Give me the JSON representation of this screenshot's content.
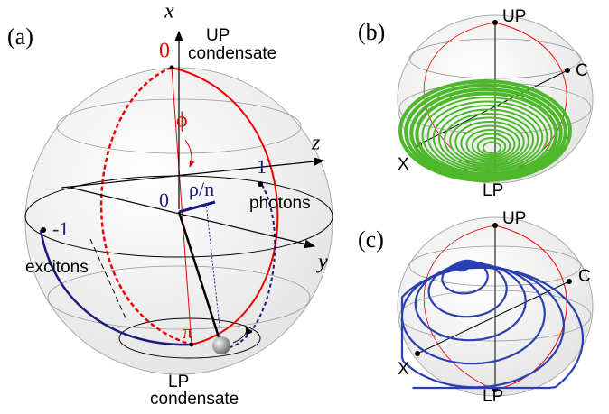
{
  "panel_a": {
    "label": "(a)",
    "axis_x": "x",
    "axis_y": "y",
    "axis_z": "z",
    "top_value": "0",
    "top_state": "UP",
    "top_state_line2": "condensate",
    "phase": "ϕ",
    "right_value": "1",
    "radius": "ρ/n",
    "center_value": "0",
    "right_label": "photons",
    "left_value": "-1",
    "left_label": "excitons",
    "bottom_value": "π",
    "bottom_state": "LP",
    "bottom_state_line2": "condensate"
  },
  "panel_b": {
    "label": "(b)",
    "top": "UP",
    "right": "C",
    "left": "X",
    "bottom": "LP"
  },
  "panel_c": {
    "label": "(c)",
    "top": "UP",
    "right": "C",
    "left": "X",
    "bottom": "LP"
  }
}
